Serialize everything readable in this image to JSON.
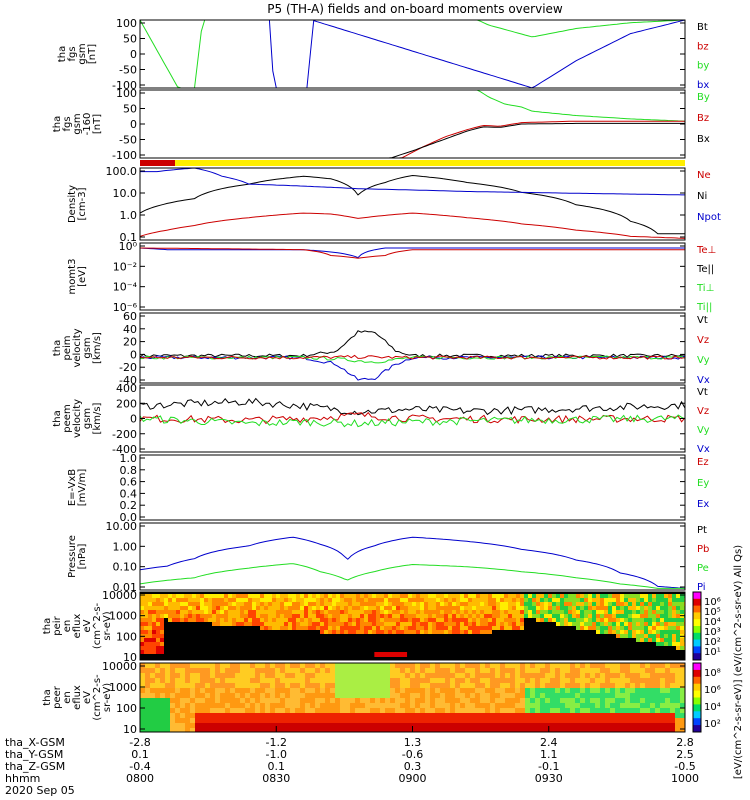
{
  "title": "P5 (TH-A) fields and on-board moments overview",
  "colors": {
    "black": "#000000",
    "red": "#cc0000",
    "green": "#22dd22",
    "blue": "#0000cc",
    "yellow": "#ffee00"
  },
  "chart_data": [
    {
      "type": "line",
      "panel": "fgs",
      "ylabel": [
        "tha",
        "fgs",
        "gsm",
        "[nT]"
      ],
      "ylim": [
        -100,
        100
      ],
      "yticks": [
        "100",
        "50",
        "0",
        "-50",
        "-100"
      ],
      "legend": [
        {
          "label": "Bt",
          "color": "#000000"
        },
        {
          "label": "bz",
          "color": "#cc0000"
        },
        {
          "label": "by",
          "color": "#22dd22"
        },
        {
          "label": "bx",
          "color": "#0000cc"
        }
      ],
      "series": [
        {
          "name": "by",
          "color": "#22dd22",
          "x": [
            0,
            0.07,
            0.1,
            0.115,
            0.5,
            0.62,
            0.64,
            0.72,
            0.8,
            0.9,
            1
          ],
          "y": [
            100,
            -100,
            -100,
            100,
            100,
            100,
            85,
            50,
            75,
            92,
            100
          ]
        },
        {
          "name": "bx",
          "color": "#0000cc",
          "x": [
            0.24,
            0.245,
            0.31,
            0.315,
            0.72,
            0.8,
            0.9,
            1
          ],
          "y": [
            100,
            -100,
            -100,
            100,
            -100,
            -20,
            60,
            100
          ]
        }
      ]
    },
    {
      "type": "line",
      "panel": "fgs-2",
      "ylabel": [
        "tha",
        "fgs",
        "gsm",
        "-160",
        "[nT]"
      ],
      "ylim": [
        -120,
        120
      ],
      "yticks": [
        "100",
        "50",
        "0",
        "-50",
        "-100"
      ],
      "legend": [
        {
          "label": "By",
          "color": "#22dd22"
        },
        {
          "label": "Bz",
          "color": "#cc0000"
        },
        {
          "label": "Bx",
          "color": "#000000"
        }
      ],
      "series": [
        {
          "name": "green",
          "color": "#22dd22",
          "x": [
            0.62,
            0.64,
            0.67,
            0.7,
            0.72,
            0.8,
            0.9,
            1
          ],
          "y": [
            120,
            95,
            70,
            60,
            45,
            30,
            18,
            10
          ]
        },
        {
          "name": "red",
          "color": "#cc0000",
          "x": [
            0.48,
            0.52,
            0.56,
            0.6,
            0.63,
            0.66,
            0.7,
            0.8,
            1
          ],
          "y": [
            -120,
            -80,
            -45,
            -20,
            -5,
            -8,
            5,
            10,
            10
          ]
        },
        {
          "name": "black",
          "color": "#000000",
          "x": [
            0.46,
            0.5,
            0.55,
            0.6,
            0.63,
            0.66,
            0.7,
            0.8,
            1
          ],
          "y": [
            -120,
            -95,
            -60,
            -25,
            -10,
            -12,
            0,
            2,
            2
          ]
        }
      ]
    },
    {
      "type": "line",
      "panel": "density",
      "ylabel": [
        "Density",
        "[cm-3]"
      ],
      "yscale": "log",
      "ylim": [
        0.1,
        300
      ],
      "yticks": [
        "100.0",
        "10.0",
        "1.0",
        "0.1"
      ],
      "legend": [
        {
          "label": "Ne",
          "color": "#cc0000"
        },
        {
          "label": "Ni",
          "color": "#000000"
        },
        {
          "label": "Npot",
          "color": "#0000cc"
        }
      ],
      "series": [
        {
          "name": "Ni",
          "color": "#000000",
          "x": [
            0,
            0.04,
            0.1,
            0.2,
            0.3,
            0.35,
            0.4,
            0.45,
            0.5,
            0.6,
            0.7,
            0.8,
            0.9,
            0.95,
            1
          ],
          "y": [
            2,
            5,
            10,
            50,
            120,
            90,
            15,
            60,
            130,
            60,
            20,
            5,
            0.8,
            0.2,
            0.2
          ]
        },
        {
          "name": "Ne",
          "color": "#cc0000",
          "x": [
            0,
            0.05,
            0.1,
            0.2,
            0.3,
            0.35,
            0.4,
            0.5,
            0.6,
            0.7,
            0.8,
            0.9,
            1
          ],
          "y": [
            0.15,
            0.3,
            0.5,
            1.2,
            2,
            1.8,
            1.1,
            2,
            1.2,
            0.6,
            0.3,
            0.15,
            0.12
          ]
        },
        {
          "name": "Npot",
          "color": "#0000cc",
          "x": [
            0,
            0.02,
            0.03,
            0.1,
            0.15,
            0.2,
            0.4,
            0.6,
            0.8,
            1
          ],
          "y": [
            200,
            200,
            200,
            300,
            120,
            50,
            30,
            22,
            18,
            15
          ]
        }
      ]
    },
    {
      "type": "line",
      "panel": "moms-t3",
      "ylabel": [
        "momt3",
        "[eV]"
      ],
      "yscale": "log",
      "ylim": [
        1e-06,
        10
      ],
      "yticks": [
        "10⁰",
        "10⁻²",
        "10⁻⁴",
        "10⁻⁶"
      ],
      "legend": [
        {
          "label": "Te⊥",
          "color": "#cc0000"
        },
        {
          "label": "Te||",
          "color": "#000000"
        },
        {
          "label": "Ti⊥",
          "color": "#22dd22"
        },
        {
          "label": "Ti||",
          "color": "#22dd22"
        }
      ],
      "series": [
        {
          "name": "Ti",
          "color": "#0000cc",
          "x": [
            0,
            0.05,
            0.1,
            0.3,
            0.4,
            0.45,
            0.5,
            1
          ],
          "y": [
            3,
            2,
            2,
            2,
            0.3,
            3,
            3,
            3
          ]
        },
        {
          "name": "Te",
          "color": "#cc0000",
          "x": [
            0,
            0.3,
            0.35,
            0.4,
            0.45,
            0.5,
            1
          ],
          "y": [
            3,
            2,
            0.5,
            0.25,
            0.5,
            2,
            2
          ]
        }
      ]
    },
    {
      "type": "line",
      "panel": "peim-velocity",
      "ylabel": [
        "tha",
        "peim",
        "velocity",
        "gsm",
        "[km/s]"
      ],
      "ylim": [
        -40,
        70
      ],
      "yticks": [
        "60",
        "40",
        "20",
        "0",
        "-20",
        "-40"
      ],
      "legend": [
        {
          "label": "Vt",
          "color": "#000000"
        },
        {
          "label": "Vz",
          "color": "#cc0000"
        },
        {
          "label": "Vy",
          "color": "#22dd22"
        },
        {
          "label": "Vx",
          "color": "#0000cc"
        }
      ],
      "series": [
        {
          "name": "Vt",
          "color": "#000000",
          "x": [
            0,
            0.3,
            0.36,
            0.4,
            0.43,
            0.47,
            0.5,
            1
          ],
          "y": [
            3,
            3,
            10,
            40,
            40,
            10,
            3,
            3
          ]
        },
        {
          "name": "Vx",
          "color": "#0000cc",
          "x": [
            0,
            0.3,
            0.36,
            0.4,
            0.43,
            0.47,
            0.5,
            1
          ],
          "y": [
            0,
            0,
            -10,
            -35,
            -33,
            -10,
            0,
            0
          ]
        },
        {
          "name": "Vy",
          "color": "#22dd22",
          "x": [
            0,
            0.3,
            0.36,
            0.4,
            0.43,
            0.47,
            0.5,
            1
          ],
          "y": [
            0,
            0,
            -2,
            -5,
            -7,
            -3,
            0,
            0
          ]
        },
        {
          "name": "Vz",
          "color": "#cc0000",
          "x": [
            0,
            0.3,
            0.4,
            0.5,
            1
          ],
          "y": [
            0,
            0,
            1,
            0,
            0
          ]
        }
      ]
    },
    {
      "type": "line",
      "panel": "peem-velocity",
      "ylabel": [
        "tha",
        "peem",
        "velocity",
        "gsm",
        "[km/s]"
      ],
      "ylim": [
        -400,
        400
      ],
      "yticks": [
        "400",
        "200",
        "0",
        "-200",
        "-400"
      ],
      "legend": [
        {
          "label": "Vt",
          "color": "#000000"
        },
        {
          "label": "Vz",
          "color": "#cc0000"
        },
        {
          "label": "Vy",
          "color": "#22dd22"
        },
        {
          "label": "Vx",
          "color": "#0000cc"
        }
      ],
      "series": [
        {
          "name": "Vt",
          "color": "#000000",
          "x": [
            0,
            0.1,
            0.2,
            0.3,
            0.4,
            0.5,
            0.6,
            0.7,
            0.8,
            0.9,
            1
          ],
          "y": [
            150,
            180,
            200,
            150,
            80,
            110,
            90,
            100,
            120,
            140,
            160
          ]
        },
        {
          "name": "Vz",
          "color": "#cc0000",
          "x": [
            0,
            0.2,
            0.3,
            0.4,
            0.5,
            0.7,
            1
          ],
          "y": [
            0,
            -20,
            0,
            40,
            0,
            -10,
            0
          ]
        },
        {
          "name": "Vy",
          "color": "#22dd22",
          "x": [
            0,
            0.2,
            0.3,
            0.4,
            0.5,
            0.7,
            1
          ],
          "y": [
            0,
            -60,
            -40,
            -60,
            -40,
            -20,
            0
          ]
        }
      ]
    },
    {
      "type": "line",
      "panel": "e-field",
      "ylabel": [
        "E=-VxB",
        "[mV/m]"
      ],
      "ylim": [
        0,
        1
      ],
      "yticks": [
        "1.0",
        "0.8",
        "0.6",
        "0.4",
        "0.2",
        "0.0"
      ],
      "legend": [
        {
          "label": "Ez",
          "color": "#cc0000"
        },
        {
          "label": "Ey",
          "color": "#22dd22"
        },
        {
          "label": "Ex",
          "color": "#0000cc"
        }
      ],
      "series": []
    },
    {
      "type": "line",
      "panel": "pressure",
      "ylabel": [
        "Pressure",
        "[nPa]"
      ],
      "yscale": "log",
      "ylim": [
        0.01,
        20
      ],
      "yticks": [
        "10.00",
        "1.00",
        "0.10",
        "0.01"
      ],
      "legend": [
        {
          "label": "Pt",
          "color": "#000000"
        },
        {
          "label": "Pb",
          "color": "#cc0000"
        },
        {
          "label": "Pe",
          "color": "#22dd22"
        },
        {
          "label": "Pi",
          "color": "#0000cc"
        }
      ],
      "series": [
        {
          "name": "Pi",
          "color": "#0000cc",
          "x": [
            0,
            0.05,
            0.1,
            0.2,
            0.28,
            0.33,
            0.38,
            0.43,
            0.5,
            0.6,
            0.7,
            0.8,
            0.88,
            0.95,
            1
          ],
          "y": [
            0.1,
            0.15,
            0.35,
            1.5,
            4,
            1.8,
            0.3,
            1.5,
            4,
            2.5,
            1,
            0.3,
            0.07,
            0.015,
            0.012
          ]
        },
        {
          "name": "Pe",
          "color": "#22dd22",
          "x": [
            0,
            0.05,
            0.1,
            0.2,
            0.28,
            0.33,
            0.38,
            0.43,
            0.5,
            0.6,
            0.7,
            0.8,
            0.88,
            0.95,
            1
          ],
          "y": [
            0.02,
            0.03,
            0.04,
            0.12,
            0.2,
            0.08,
            0.03,
            0.08,
            0.18,
            0.14,
            0.08,
            0.04,
            0.02,
            0.012,
            0.012
          ]
        }
      ]
    },
    {
      "type": "heatmap",
      "panel": "peir-eflux",
      "ylabel": [
        "tha",
        "peir",
        "en",
        "eflux",
        "eV",
        "(cm^2-s-",
        "sr-eV)"
      ],
      "yscale": "log",
      "ylim": [
        5,
        30000
      ],
      "yticks": [
        "10000",
        "1000",
        "100",
        "10"
      ],
      "colorbar": {
        "labels": [
          "10⁶",
          "10⁵",
          "10⁴",
          "10³",
          "10²",
          "10¹"
        ]
      }
    },
    {
      "type": "heatmap",
      "panel": "peer-eflux",
      "ylabel": [
        "tha",
        "peer",
        "en",
        "eflux",
        "eV",
        "(cm^2-s-",
        "sr-eV)"
      ],
      "yscale": "log",
      "ylim": [
        5,
        30000
      ],
      "yticks": [
        "10000",
        "1000",
        "100",
        "10"
      ],
      "colorbar": {
        "labels": [
          "10⁸",
          "10⁶",
          "10⁴",
          "10²"
        ]
      }
    }
  ],
  "colorbar_label": "[eV/(cm^2-s-sr-eV)] (eV/(cm^2-s-sr-eV) All Qs)",
  "xaxis": {
    "row_labels": [
      "tha_X-GSM",
      "tha_Y-GSM",
      "tha_Z-GSM",
      "hhmm",
      "2020 Sep 05"
    ],
    "ticks": [
      {
        "x": 0,
        "x_gsm": "-2.8",
        "y_gsm": "0.1",
        "z_gsm": "-0.4",
        "hhmm": "0800"
      },
      {
        "x": 0.25,
        "x_gsm": "-1.2",
        "y_gsm": "-1.0",
        "z_gsm": "0.1",
        "hhmm": "0830"
      },
      {
        "x": 0.5,
        "x_gsm": "1.3",
        "y_gsm": "-0.6",
        "z_gsm": "0.3",
        "hhmm": "0900"
      },
      {
        "x": 0.75,
        "x_gsm": "2.4",
        "y_gsm": "1.1",
        "z_gsm": "-0.1",
        "hhmm": "0930"
      },
      {
        "x": 1,
        "x_gsm": "2.8",
        "y_gsm": "2.5",
        "z_gsm": "-0.5",
        "hhmm": "1000"
      }
    ]
  }
}
